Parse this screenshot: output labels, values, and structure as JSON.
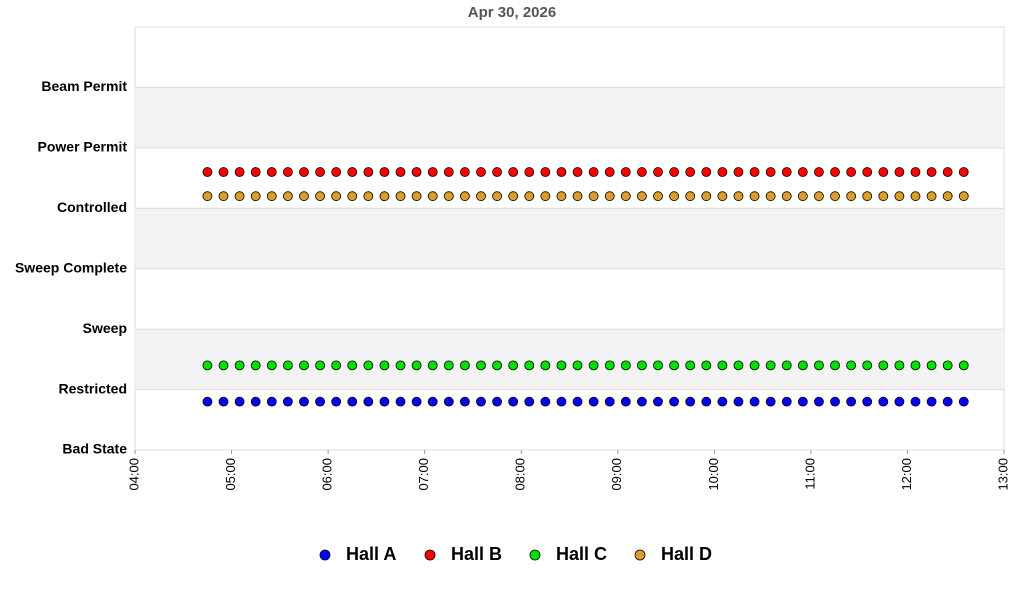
{
  "chart_data": {
    "type": "scatter",
    "title": "Apr 30, 2026",
    "x": [
      "04:45",
      "04:55",
      "05:05",
      "05:15",
      "05:25",
      "05:35",
      "05:45",
      "05:55",
      "06:05",
      "06:15",
      "06:25",
      "06:35",
      "06:45",
      "06:55",
      "07:05",
      "07:15",
      "07:25",
      "07:35",
      "07:45",
      "07:55",
      "08:05",
      "08:15",
      "08:25",
      "08:35",
      "08:45",
      "08:55",
      "09:05",
      "09:15",
      "09:25",
      "09:35",
      "09:45",
      "09:55",
      "10:05",
      "10:15",
      "10:25",
      "10:35",
      "10:45",
      "10:55",
      "11:05",
      "11:15",
      "11:25",
      "11:35",
      "11:45",
      "11:55",
      "12:05",
      "12:15",
      "12:25",
      "12:35"
    ],
    "series": [
      {
        "name": "Hall A",
        "color": "#0000ff",
        "values": [
          0.8,
          0.8,
          0.8,
          0.8,
          0.8,
          0.8,
          0.8,
          0.8,
          0.8,
          0.8,
          0.8,
          0.8,
          0.8,
          0.8,
          0.8,
          0.8,
          0.8,
          0.8,
          0.8,
          0.8,
          0.8,
          0.8,
          0.8,
          0.8,
          0.8,
          0.8,
          0.8,
          0.8,
          0.8,
          0.8,
          0.8,
          0.8,
          0.8,
          0.8,
          0.8,
          0.8,
          0.8,
          0.8,
          0.8,
          0.8,
          0.8,
          0.8,
          0.8,
          0.8,
          0.8,
          0.8,
          0.8,
          0.8
        ]
      },
      {
        "name": "Hall B",
        "color": "#ff0000",
        "values": [
          4.6,
          4.6,
          4.6,
          4.6,
          4.6,
          4.6,
          4.6,
          4.6,
          4.6,
          4.6,
          4.6,
          4.6,
          4.6,
          4.6,
          4.6,
          4.6,
          4.6,
          4.6,
          4.6,
          4.6,
          4.6,
          4.6,
          4.6,
          4.6,
          4.6,
          4.6,
          4.6,
          4.6,
          4.6,
          4.6,
          4.6,
          4.6,
          4.6,
          4.6,
          4.6,
          4.6,
          4.6,
          4.6,
          4.6,
          4.6,
          4.6,
          4.6,
          4.6,
          4.6,
          4.6,
          4.6,
          4.6,
          4.6
        ]
      },
      {
        "name": "Hall C",
        "color": "#00e000",
        "values": [
          1.4,
          1.4,
          1.4,
          1.4,
          1.4,
          1.4,
          1.4,
          1.4,
          1.4,
          1.4,
          1.4,
          1.4,
          1.4,
          1.4,
          1.4,
          1.4,
          1.4,
          1.4,
          1.4,
          1.4,
          1.4,
          1.4,
          1.4,
          1.4,
          1.4,
          1.4,
          1.4,
          1.4,
          1.4,
          1.4,
          1.4,
          1.4,
          1.4,
          1.4,
          1.4,
          1.4,
          1.4,
          1.4,
          1.4,
          1.4,
          1.4,
          1.4,
          1.4,
          1.4,
          1.4,
          1.4,
          1.4,
          1.4
        ]
      },
      {
        "name": "Hall D",
        "color": "#dc9c30",
        "values": [
          4.2,
          4.2,
          4.2,
          4.2,
          4.2,
          4.2,
          4.2,
          4.2,
          4.2,
          4.2,
          4.2,
          4.2,
          4.2,
          4.2,
          4.2,
          4.2,
          4.2,
          4.2,
          4.2,
          4.2,
          4.2,
          4.2,
          4.2,
          4.2,
          4.2,
          4.2,
          4.2,
          4.2,
          4.2,
          4.2,
          4.2,
          4.2,
          4.2,
          4.2,
          4.2,
          4.2,
          4.2,
          4.2,
          4.2,
          4.2,
          4.2,
          4.2,
          4.2,
          4.2,
          4.2,
          4.2,
          4.2,
          4.2
        ]
      }
    ],
    "xlim": [
      "04:00",
      "13:00"
    ],
    "xticks": [
      "04:00",
      "05:00",
      "06:00",
      "07:00",
      "08:00",
      "09:00",
      "10:00",
      "11:00",
      "12:00",
      "13:00"
    ],
    "ylim": [
      0,
      7
    ],
    "yticks": [
      {
        "value": 0,
        "label": "Bad State"
      },
      {
        "value": 1,
        "label": "Restricted"
      },
      {
        "value": 2,
        "label": "Sweep"
      },
      {
        "value": 3,
        "label": "Sweep Complete"
      },
      {
        "value": 4,
        "label": "Controlled"
      },
      {
        "value": 5,
        "label": "Power Permit"
      },
      {
        "value": 6,
        "label": "Beam Permit"
      }
    ],
    "grid": true,
    "legend": "bottom"
  }
}
